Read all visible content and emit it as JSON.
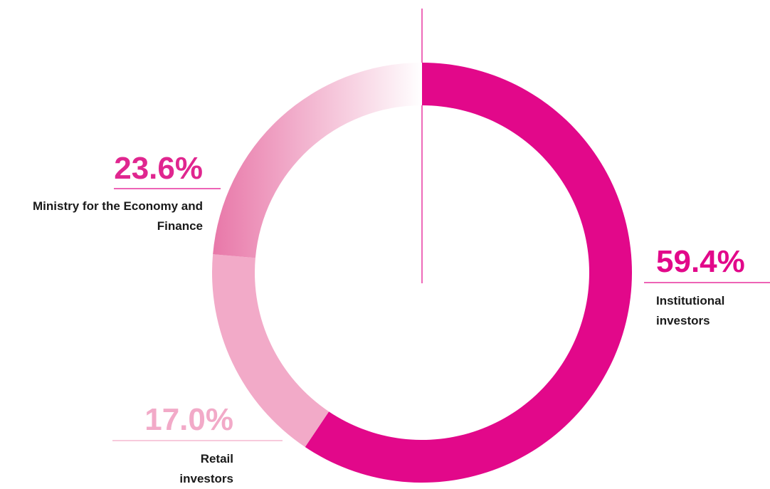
{
  "chart_data": {
    "type": "pie",
    "categories": [
      "Institutional investors",
      "Retail investors",
      "Ministry for the Economy and Finance"
    ],
    "values": [
      59.4,
      17.0,
      23.6
    ],
    "value_labels": [
      "59.4%",
      "17.0%",
      "23.6%"
    ],
    "colors": [
      "#e2088a",
      "#f2aac8",
      "#e877a8"
    ]
  }
}
